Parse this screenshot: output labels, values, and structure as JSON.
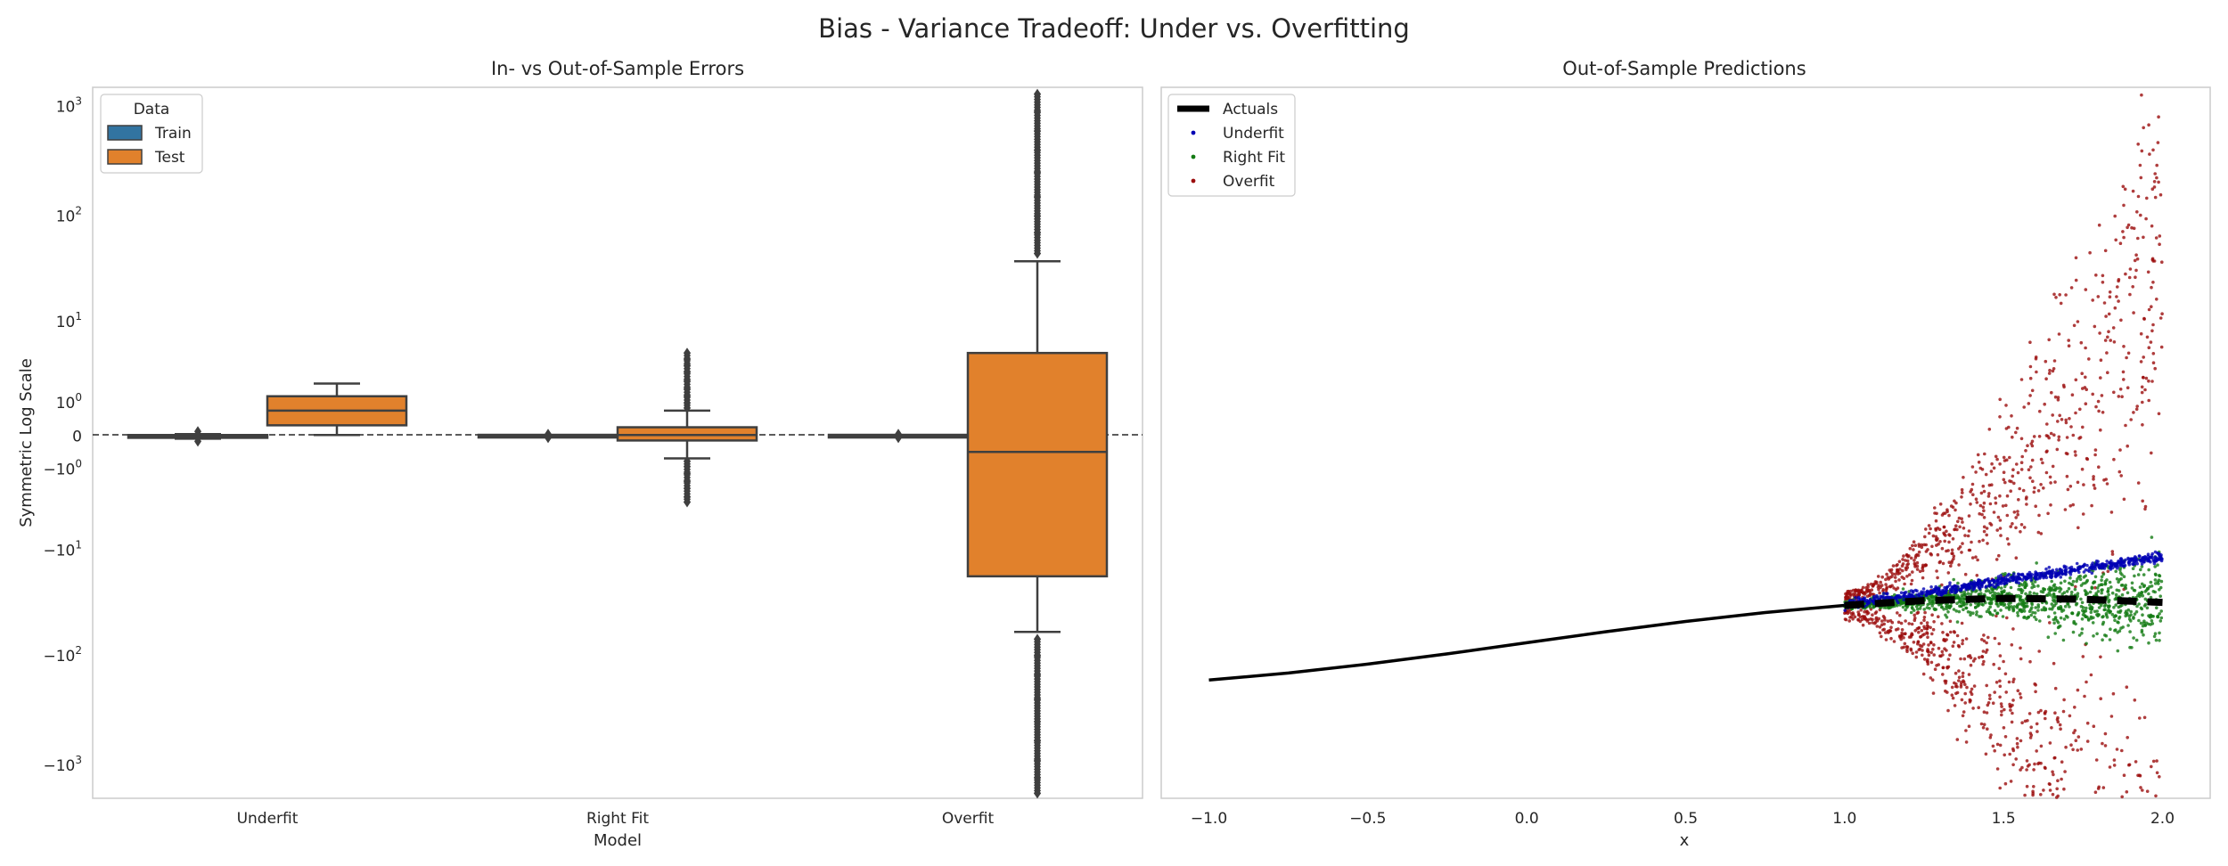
{
  "suptitle": "Bias - Variance Tradeoff: Under vs. Overfitting",
  "colors": {
    "train": "#3274a1",
    "test": "#e1812c",
    "box_edge": "#3f3f3f",
    "actuals": "#000000",
    "underfit": "#0000b4",
    "right_fit": "#137a13",
    "overfit": "#9b0d0d",
    "frame": "#cccccc"
  },
  "chart_data": [
    {
      "type": "box",
      "title": "In- vs Out-of-Sample Errors",
      "xlabel": "Model",
      "ylabel": "Symmetric Log Scale",
      "yscale": "symlog",
      "ylim": [
        -2000,
        1500
      ],
      "categories": [
        "Underfit",
        "Right Fit",
        "Overfit"
      ],
      "yticks": [
        {
          "value": -1000,
          "label": "−10",
          "exp": "3"
        },
        {
          "value": -100,
          "label": "−10",
          "exp": "2"
        },
        {
          "value": -10,
          "label": "−10",
          "exp": "1"
        },
        {
          "value": -1,
          "label": "−10",
          "exp": "0"
        },
        {
          "value": 0,
          "label": "0",
          "exp": ""
        },
        {
          "value": 1,
          "label": "10",
          "exp": "0"
        },
        {
          "value": 10,
          "label": "10",
          "exp": "1"
        },
        {
          "value": 100,
          "label": "10",
          "exp": "2"
        },
        {
          "value": 1000,
          "label": "10",
          "exp": "3"
        }
      ],
      "legend": {
        "title": "Data",
        "position": "upper left",
        "entries": [
          "Train",
          "Test"
        ]
      },
      "reference_line": {
        "y": 0,
        "style": "dashed"
      },
      "series": [
        {
          "name": "Train",
          "boxes": [
            {
              "q1": -0.04,
              "median": -0.01,
              "q3": 0.02,
              "whislo": -0.06,
              "whishi": 0.04,
              "outliers": [
                -0.12,
                0.1
              ]
            },
            {
              "q1": -0.005,
              "median": 0,
              "q3": 0.005,
              "whislo": -0.01,
              "whishi": 0.01,
              "outliers": [
                -0.04,
                0.04
              ]
            },
            {
              "q1": -0.005,
              "median": 0,
              "q3": 0.005,
              "whislo": -0.01,
              "whishi": 0.01,
              "outliers": [
                -0.04,
                0.04
              ]
            }
          ]
        },
        {
          "name": "Test",
          "boxes": [
            {
              "q1": 0.25,
              "median": 0.7,
              "q3": 1.3,
              "whislo": 0.02,
              "whishi": 2.0,
              "outliers": []
            },
            {
              "q1": -0.1,
              "median": 0.02,
              "q3": 0.2,
              "whislo": -0.6,
              "whishi": 0.7,
              "outliers": [
                -0.7,
                -0.9,
                -1.2,
                -1.6,
                -2.0,
                -2.6,
                -3.0,
                0.8,
                1.0,
                1.3,
                1.7,
                2.2,
                2.8,
                3.4,
                4.0,
                4.7
              ]
            },
            {
              "q1": -18,
              "median": -0.4,
              "q3": 4.7,
              "whislo": -60,
              "whishi": 38,
              "outliers": [
                -70,
                -100,
                -150,
                -250,
                -400,
                -600,
                -900,
                -1300,
                -1800,
                45,
                70,
                100,
                150,
                250,
                400,
                600,
                900,
                1300
              ]
            }
          ]
        }
      ]
    },
    {
      "type": "line+scatter",
      "title": "Out-of-Sample Predictions",
      "xlabel": "x",
      "xlim": [
        -1.15,
        2.15
      ],
      "ylim": [
        -3.5,
        12.5
      ],
      "xticks": [
        -1.0,
        -0.5,
        0.0,
        0.5,
        1.0,
        1.5,
        2.0
      ],
      "xticklabels": [
        "−1.0",
        "−0.5",
        "0.0",
        "0.5",
        "1.0",
        "1.5",
        "2.0"
      ],
      "grid": false,
      "legend": {
        "position": "upper left",
        "entries": [
          "Actuals",
          "Underfit",
          "Right Fit",
          "Overfit"
        ]
      },
      "series": [
        {
          "name": "Actuals",
          "kind": "line+dashed",
          "x": [
            -1.0,
            -0.75,
            -0.5,
            -0.25,
            0.0,
            0.25,
            0.5,
            0.75,
            1.0,
            1.25,
            1.5,
            1.75,
            2.0
          ],
          "y": [
            -0.84,
            -0.68,
            -0.48,
            -0.25,
            0.0,
            0.25,
            0.48,
            0.68,
            0.84,
            0.95,
            1.0,
            0.98,
            0.91
          ]
        },
        {
          "name": "Underfit",
          "kind": "scatter",
          "x_range": [
            1.0,
            2.0
          ],
          "y_start": 0.84,
          "y_end": 1.95,
          "spread": [
            0.05,
            0.06
          ]
        },
        {
          "name": "Right Fit",
          "kind": "scatter",
          "x_range": [
            1.0,
            2.0
          ],
          "y_start": 0.84,
          "y_end": 0.91,
          "spread": [
            0.1,
            1.3
          ]
        },
        {
          "name": "Overfit",
          "kind": "scatter",
          "x_range": [
            1.0,
            2.0
          ],
          "y_start": 0.84,
          "y_end": 0.91,
          "spread": [
            0.3,
            11.0
          ]
        }
      ]
    }
  ]
}
